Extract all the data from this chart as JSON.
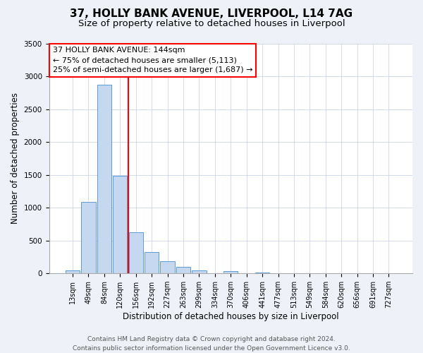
{
  "title": "37, HOLLY BANK AVENUE, LIVERPOOL, L14 7AG",
  "subtitle": "Size of property relative to detached houses in Liverpool",
  "xlabel": "Distribution of detached houses by size in Liverpool",
  "ylabel": "Number of detached properties",
  "categories": [
    "13sqm",
    "49sqm",
    "84sqm",
    "120sqm",
    "156sqm",
    "192sqm",
    "227sqm",
    "263sqm",
    "299sqm",
    "334sqm",
    "370sqm",
    "406sqm",
    "441sqm",
    "477sqm",
    "513sqm",
    "549sqm",
    "584sqm",
    "620sqm",
    "656sqm",
    "691sqm",
    "727sqm"
  ],
  "values": [
    40,
    1090,
    2870,
    1480,
    630,
    330,
    190,
    95,
    50,
    0,
    35,
    0,
    15,
    0,
    0,
    0,
    0,
    0,
    0,
    0,
    0
  ],
  "bar_color": "#c5d8f0",
  "bar_edge_color": "#5b9bd5",
  "vline_color": "red",
  "vline_pos": 3.5,
  "ylim": [
    0,
    3500
  ],
  "yticks": [
    0,
    500,
    1000,
    1500,
    2000,
    2500,
    3000,
    3500
  ],
  "annotation_title": "37 HOLLY BANK AVENUE: 144sqm",
  "annotation_line1": "← 75% of detached houses are smaller (5,113)",
  "annotation_line2": "25% of semi-detached houses are larger (1,687) →",
  "annotation_box_color": "red",
  "footer_line1": "Contains HM Land Registry data © Crown copyright and database right 2024.",
  "footer_line2": "Contains public sector information licensed under the Open Government Licence v3.0.",
  "bg_color": "#eef2f8",
  "plot_bg_color": "#ffffff",
  "grid_color": "#ccd6e8",
  "title_fontsize": 11,
  "subtitle_fontsize": 9.5,
  "tick_fontsize": 7,
  "axis_label_fontsize": 8.5,
  "annotation_fontsize": 8,
  "footer_fontsize": 6.5
}
